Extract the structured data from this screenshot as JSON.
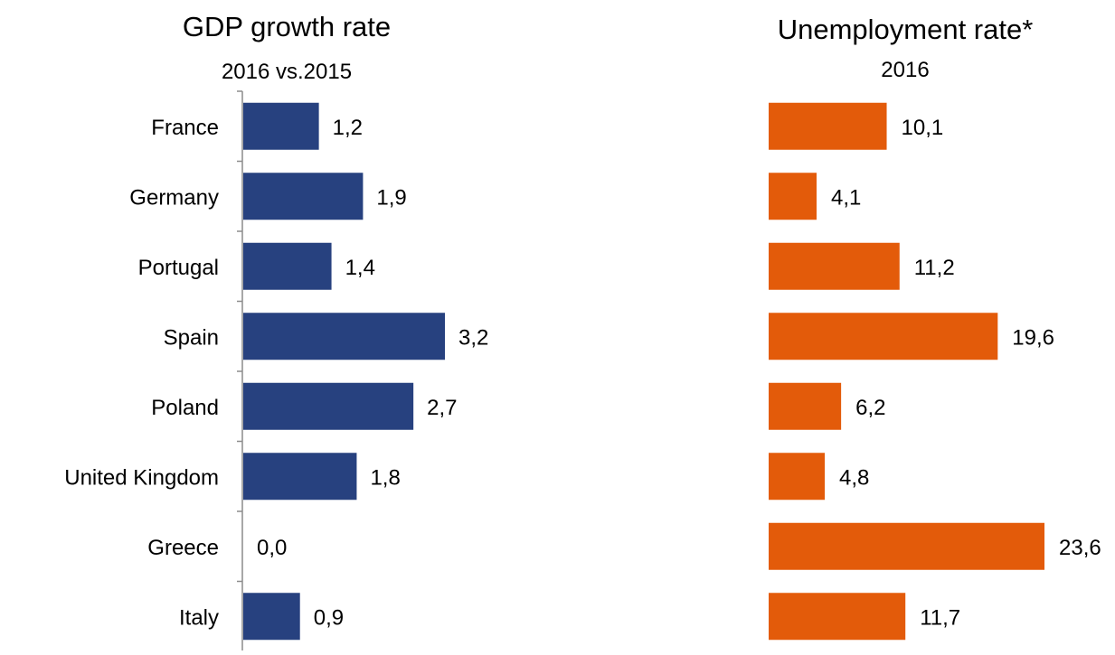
{
  "chart_data": [
    {
      "type": "bar",
      "orientation": "horizontal",
      "title": "GDP growth rate",
      "subtitle": "2016 vs.2015",
      "categories": [
        "France",
        "Germany",
        "Portugal",
        "Spain",
        "Poland",
        "United Kingdom",
        "Greece",
        "Italy"
      ],
      "values": [
        1.2,
        1.9,
        1.4,
        3.2,
        2.7,
        1.8,
        0.0,
        0.9
      ],
      "value_labels": [
        "1,2",
        "1,9",
        "1,4",
        "3,2",
        "2,7",
        "1,8",
        "0,0",
        "0,9"
      ],
      "xlim": [
        0,
        3.2
      ],
      "color": "#27417f",
      "grid": false,
      "legend": "none"
    },
    {
      "type": "bar",
      "orientation": "horizontal",
      "title": "Unemployment rate*",
      "subtitle": "2016",
      "categories": [
        "France",
        "Germany",
        "Portugal",
        "Spain",
        "Poland",
        "United Kingdom",
        "Greece",
        "Italy"
      ],
      "values": [
        10.1,
        4.1,
        11.2,
        19.6,
        6.2,
        4.8,
        23.6,
        11.7
      ],
      "value_labels": [
        "10,1",
        "4,1",
        "11,2",
        "19,6",
        "6,2",
        "4,8",
        "23,6",
        "11,7"
      ],
      "xlim": [
        0,
        23.6
      ],
      "color": "#e35b0a",
      "grid": false,
      "legend": "none"
    }
  ]
}
